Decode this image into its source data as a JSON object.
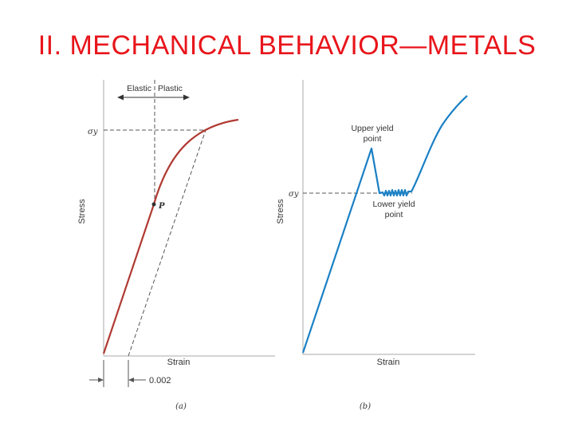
{
  "slide": {
    "title": "II.  MECHANICAL BEHAVIOR—METALS"
  },
  "panel_a": {
    "region_labels": {
      "elastic": "Elastic",
      "plastic": "Plastic"
    },
    "yield_symbol": "σy",
    "point_label": "P",
    "ylabel": "Stress",
    "xlabel": "Strain",
    "offset_label": "0.002",
    "caption": "(a)",
    "curve_color": "#b03a32"
  },
  "panel_b": {
    "upper_yield": [
      "Upper yield",
      "point"
    ],
    "lower_yield": [
      "Lower yield",
      "point"
    ],
    "yield_symbol": "σy",
    "ylabel": "Stress",
    "xlabel": "Strain",
    "caption": "(b)",
    "curve_color": "#1a80c4"
  },
  "colors": {
    "title": "#e8151b",
    "axis": "#aaaaaa",
    "dashed": "#555555"
  }
}
